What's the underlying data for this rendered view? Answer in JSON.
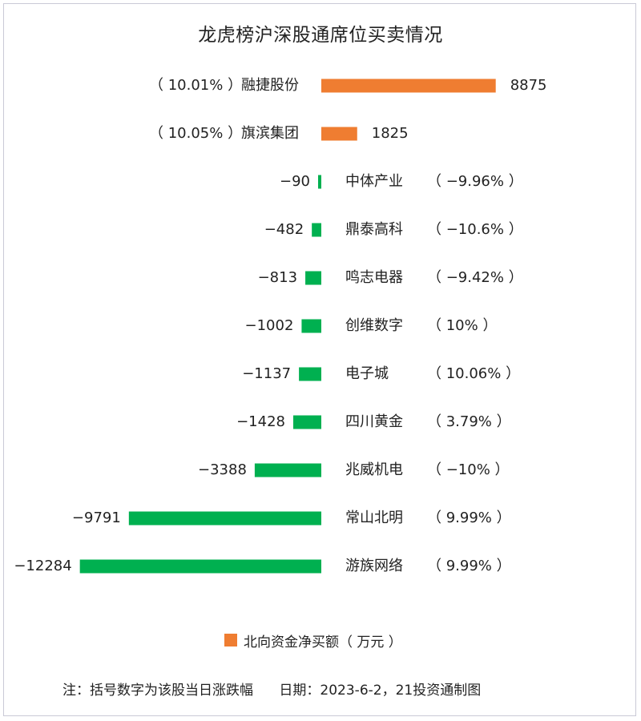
{
  "chart_data": {
    "type": "bar",
    "orientation": "horizontal",
    "title": "龙虎榜沪深股通席位买卖情况",
    "categories": [
      "融捷股份",
      "旗滨集团",
      "中体产业",
      "鼎泰高科",
      "鸣志电器",
      "创维数字",
      "电子城",
      "四川黄金",
      "兆威机电",
      "常山北明",
      "游族网络"
    ],
    "values": [
      8875,
      1825,
      -90,
      -482,
      -813,
      -1002,
      -1137,
      -1428,
      -3388,
      -9791,
      -12284
    ],
    "value_labels": [
      "8875",
      "1825",
      "−90",
      "−482",
      "−813",
      "−1002",
      "−1137",
      "−1428",
      "−3388",
      "−9791",
      "−12284"
    ],
    "change_labels": [
      "（ 10.01% ）",
      "（ 10.05% ）",
      "（ −9.96% ）",
      "（ −10.6% ）",
      "（ −9.42% ）",
      "（ 10% ）",
      "（ 10.06% ）",
      "（ 3.79% ）",
      "（ −10% ）",
      "（ 9.99% ）",
      "（ 9.99% ）"
    ],
    "series": [
      {
        "name": "北向资金净买额（ 万元 ）"
      }
    ],
    "legend": {
      "label": "北向资金净买额（ 万元 ）",
      "position": "bottom"
    },
    "grid": false,
    "colors": {
      "positive": "#ef7d31",
      "negative": "#00b050"
    }
  },
  "footnote": "注：括号数字为该股当日涨跌幅      日期：2023-6-2，21投资通制图"
}
